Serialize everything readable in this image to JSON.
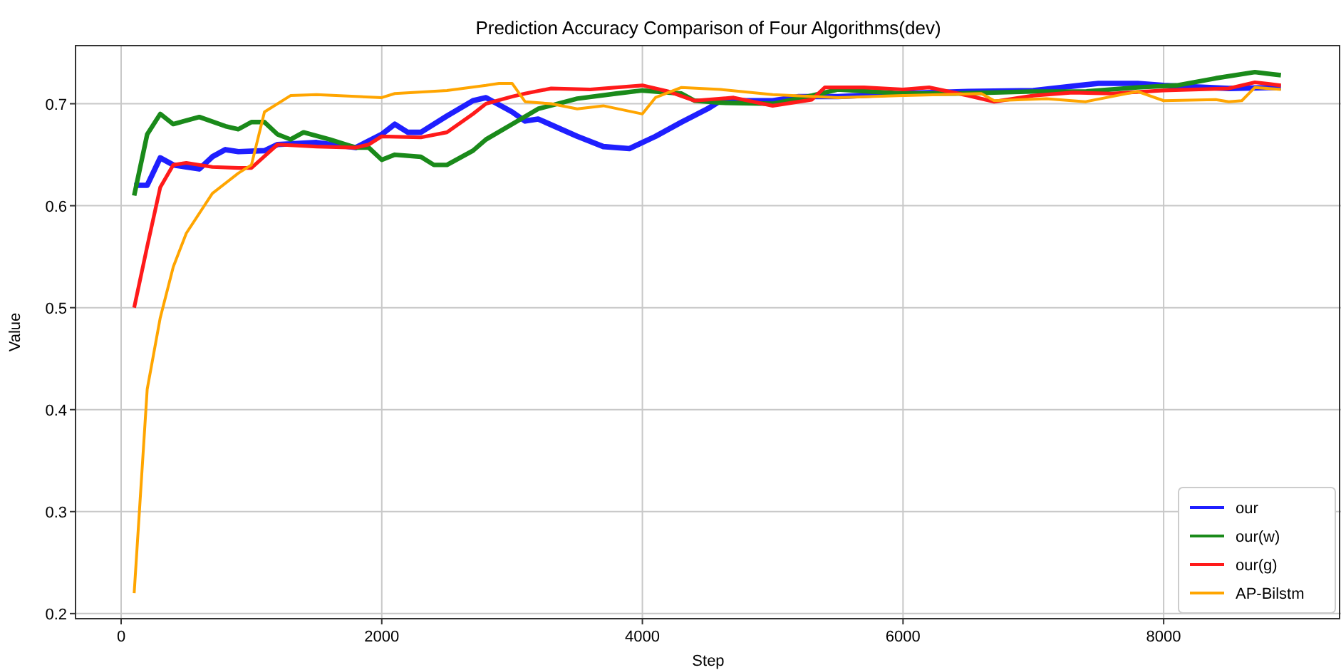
{
  "chart_data": {
    "type": "line",
    "title": "Prediction Accuracy Comparison of Four Algorithms(dev)",
    "xlabel": "Step",
    "ylabel": "Value",
    "xlim": [
      -350,
      9350
    ],
    "ylim": [
      0.195,
      0.757
    ],
    "xticks": [
      0,
      2000,
      4000,
      6000,
      8000
    ],
    "yticks": [
      0.2,
      0.3,
      0.4,
      0.5,
      0.6,
      0.7
    ],
    "grid": true,
    "legend": "bottom right",
    "line_style": "solid",
    "marker": "none",
    "series": [
      {
        "name": "our",
        "color": "#1f1fff",
        "x": [
          100,
          200,
          300,
          400,
          600,
          700,
          800,
          900,
          1100,
          1200,
          1500,
          1800,
          2000,
          2100,
          2200,
          2300,
          2500,
          2700,
          2800,
          3000,
          3100,
          3200,
          3500,
          3700,
          3900,
          4100,
          4300,
          4500,
          4600,
          5000,
          5200,
          5500,
          6000,
          6500,
          7000,
          7500,
          7800,
          8000,
          8500,
          8900
        ],
        "values": [
          0.62,
          0.62,
          0.647,
          0.64,
          0.636,
          0.648,
          0.655,
          0.653,
          0.654,
          0.66,
          0.662,
          0.657,
          0.67,
          0.68,
          0.672,
          0.672,
          0.688,
          0.703,
          0.706,
          0.692,
          0.683,
          0.685,
          0.668,
          0.658,
          0.656,
          0.668,
          0.682,
          0.695,
          0.703,
          0.703,
          0.707,
          0.707,
          0.71,
          0.712,
          0.713,
          0.72,
          0.72,
          0.718,
          0.715,
          0.716
        ]
      },
      {
        "name": "our(w)",
        "color": "#1a8a1a",
        "x": [
          100,
          200,
          300,
          400,
          600,
          800,
          900,
          1000,
          1100,
          1200,
          1300,
          1400,
          1600,
          1800,
          1900,
          2000,
          2100,
          2300,
          2400,
          2500,
          2700,
          2800,
          3000,
          3200,
          3500,
          3800,
          4000,
          4300,
          4400,
          4600,
          5000,
          5300,
          5500,
          6000,
          6400,
          7000,
          7400,
          7800,
          8100,
          8400,
          8700,
          8900
        ],
        "values": [
          0.61,
          0.67,
          0.69,
          0.68,
          0.687,
          0.678,
          0.675,
          0.682,
          0.682,
          0.67,
          0.665,
          0.672,
          0.665,
          0.657,
          0.657,
          0.645,
          0.65,
          0.648,
          0.64,
          0.64,
          0.654,
          0.665,
          0.68,
          0.695,
          0.705,
          0.71,
          0.713,
          0.71,
          0.703,
          0.701,
          0.7,
          0.708,
          0.714,
          0.71,
          0.71,
          0.712,
          0.712,
          0.716,
          0.718,
          0.725,
          0.731,
          0.728
        ]
      },
      {
        "name": "our(g)",
        "color": "#ff1a1a",
        "x": [
          100,
          200,
          300,
          400,
          500,
          700,
          900,
          1000,
          1200,
          1500,
          1800,
          1900,
          2000,
          2300,
          2500,
          2700,
          2800,
          3000,
          3100,
          3300,
          3600,
          4000,
          4200,
          4400,
          4700,
          5000,
          5300,
          5400,
          5700,
          6000,
          6200,
          6500,
          6700,
          7000,
          7300,
          7600,
          8000,
          8500,
          8700,
          8900
        ],
        "values": [
          0.5,
          0.56,
          0.618,
          0.64,
          0.642,
          0.638,
          0.637,
          0.637,
          0.66,
          0.658,
          0.657,
          0.66,
          0.668,
          0.667,
          0.672,
          0.69,
          0.7,
          0.707,
          0.71,
          0.715,
          0.714,
          0.718,
          0.712,
          0.703,
          0.706,
          0.698,
          0.704,
          0.716,
          0.716,
          0.714,
          0.716,
          0.708,
          0.702,
          0.708,
          0.711,
          0.71,
          0.713,
          0.715,
          0.721,
          0.718
        ]
      },
      {
        "name": "AP-Bilstm",
        "color": "#ffa500",
        "x": [
          100,
          200,
          300,
          400,
          500,
          700,
          900,
          1000,
          1100,
          1300,
          1500,
          2000,
          2100,
          2500,
          2800,
          2900,
          3000,
          3100,
          3300,
          3500,
          3700,
          4000,
          4100,
          4300,
          4600,
          5000,
          5500,
          6000,
          6600,
          6700,
          7100,
          7400,
          7800,
          8000,
          8400,
          8500,
          8600,
          8700,
          8900
        ],
        "values": [
          0.22,
          0.42,
          0.49,
          0.54,
          0.573,
          0.612,
          0.632,
          0.64,
          0.692,
          0.708,
          0.709,
          0.706,
          0.71,
          0.713,
          0.718,
          0.72,
          0.72,
          0.702,
          0.7,
          0.695,
          0.698,
          0.69,
          0.706,
          0.716,
          0.714,
          0.709,
          0.706,
          0.708,
          0.71,
          0.703,
          0.705,
          0.702,
          0.712,
          0.703,
          0.704,
          0.702,
          0.703,
          0.716,
          0.714
        ]
      }
    ]
  }
}
